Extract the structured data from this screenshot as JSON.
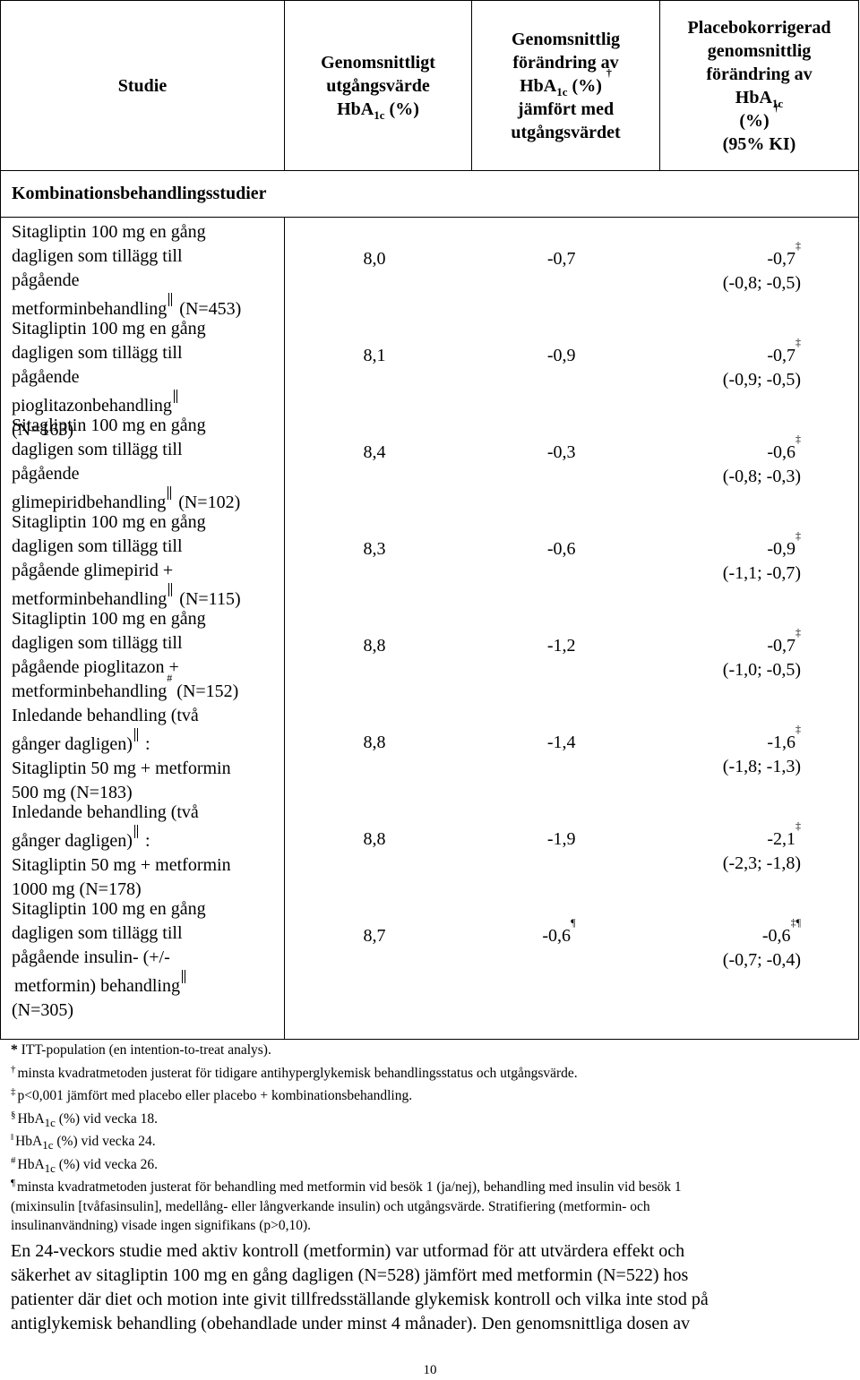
{
  "table": {
    "headers": {
      "col1": "Studie",
      "col2": [
        "Genomsnittligt",
        "utgångsvärde",
        "HbA",
        "1c",
        " (%)"
      ],
      "col3": [
        "Genomsnittlig",
        "förändring av",
        "HbA",
        "1c",
        " (%)",
        "†",
        "jämfört med",
        "utgångsvärdet"
      ],
      "col4": [
        "Placebokorrigerad",
        "genomsnittlig",
        "förändring av",
        "HbA",
        "1c",
        "(%)",
        "†",
        "(95% KI)"
      ]
    },
    "section_label": "Kombinationsbehandlingsstudier",
    "rows": [
      {
        "study_lines": [
          "Sitagliptin 100 mg en gång",
          "dagligen som tillägg till",
          "pågående",
          "metforminbehandling",
          " (N=453)"
        ],
        "baseline": "8,0",
        "change": "-0,7",
        "diff": "-0,7",
        "diff_mark": "‡",
        "ci": "(-0,8; -0,5)"
      },
      {
        "study_lines": [
          "Sitagliptin 100 mg en gång",
          "dagligen som tillägg till",
          "pågående",
          "pioglitazonbehandling",
          "(N=163)"
        ],
        "baseline": "8,1",
        "change": "-0,9",
        "diff": "-0,7",
        "diff_mark": "‡",
        "ci": "(-0,9; -0,5)"
      },
      {
        "study_lines": [
          "Sitagliptin 100 mg en gång",
          "dagligen som tillägg till",
          "pågående",
          "glimepiridbehandling",
          " (N=102)"
        ],
        "baseline": "8,4",
        "change": "-0,3",
        "diff": "-0,6",
        "diff_mark": "‡",
        "ci": "(-0,8; -0,3)"
      },
      {
        "study_lines": [
          "Sitagliptin 100 mg en gång",
          "dagligen som tillägg till",
          "pågående glimepirid +",
          "metforminbehandling",
          " (N=115)"
        ],
        "baseline": "8,3",
        "change": "-0,6",
        "diff": "-0,9",
        "diff_mark": "‡",
        "ci": "(-1,1; -0,7)"
      },
      {
        "study_lines": [
          "Sitagliptin 100 mg en gång",
          "dagligen som tillägg till",
          "pågående pioglitazon +",
          "metforminbehandling",
          "#",
          " (N=152)"
        ],
        "baseline": "8,8",
        "change": "-1,2",
        "diff": "-0,7",
        "diff_mark": "‡",
        "ci": "(-1,0; -0,5)"
      },
      {
        "study_lines": [
          "Inledande behandling (två",
          "gånger dagligen)",
          " :",
          "Sitagliptin 50 mg + metformin",
          "500 mg (N=183)"
        ],
        "baseline": "8,8",
        "change": "-1,4",
        "diff": "-1,6",
        "diff_mark": "‡",
        "ci": "(-1,8; -1,3)"
      },
      {
        "study_lines": [
          "Inledande behandling (två",
          "gånger dagligen)",
          " :",
          "Sitagliptin 50 mg + metformin",
          "1000 mg (N=178)"
        ],
        "baseline": "8,8",
        "change": "-1,9",
        "diff": "-2,1",
        "diff_mark": "‡",
        "ci": "(-2,3; -1,8)"
      },
      {
        "study_lines": [
          "Sitagliptin 100 mg en gång",
          "dagligen som tillägg till",
          "pågående insulin- (+/-",
          "metformin) behandling",
          "(N=305)"
        ],
        "baseline": "8,7",
        "change": "-0,6",
        "change_mark": "¶",
        "diff": "-0,6",
        "diff_mark": "‡¶",
        "ci": "(-0,7; -0,4)"
      }
    ]
  },
  "footnotes": [
    {
      "mark": "*",
      "text": " ITT-population (en intention-to-treat analys)."
    },
    {
      "mark": "†",
      "text": "minsta kvadratmetoden justerat för tidigare antihyperglykemisk behandlingsstatus och utgångsvärde."
    },
    {
      "mark": "‡",
      "text": "p<0,001 jämfört med placebo eller placebo + kombinationsbehandling."
    },
    {
      "mark": "§",
      "text_pre": "HbA",
      "text_sub": "1c",
      "text_post": " (%) vid vecka 18."
    },
    {
      "mark": "‖",
      "text_pre": "HbA",
      "text_sub": "1c",
      "text_post": " (%) vid vecka 24."
    },
    {
      "mark": "#",
      "text_pre": "HbA",
      "text_sub": "1c",
      "text_post": " (%) vid vecka 26."
    },
    {
      "mark": "¶",
      "lines": [
        "minsta kvadratmetoden justerat för behandling med metformin vid besök 1 (ja/nej), behandling med insulin vid besök 1",
        "(mixinsulin [tvåfasinsulin], medellång- eller långverkande insulin) och utgångsvärde. Stratifiering (metformin- och",
        "insulinanvändning) visade ingen signifikans (p>0,10)."
      ]
    }
  ],
  "paragraph_lines": [
    "En 24-veckors studie med aktiv kontroll (metformin) var utformad för att utvärdera effekt och",
    "säkerhet av sitagliptin 100 mg en gång dagligen (N=528) jämfört med metformin (N=522) hos",
    "patienter där diet och motion inte givit tillfredsställande glykemisk kontroll och vilka inte stod på",
    "antiglykemisk behandling (obehandlade under minst 4 månader). Den genomsnittliga dosen av"
  ],
  "page_number": "10"
}
